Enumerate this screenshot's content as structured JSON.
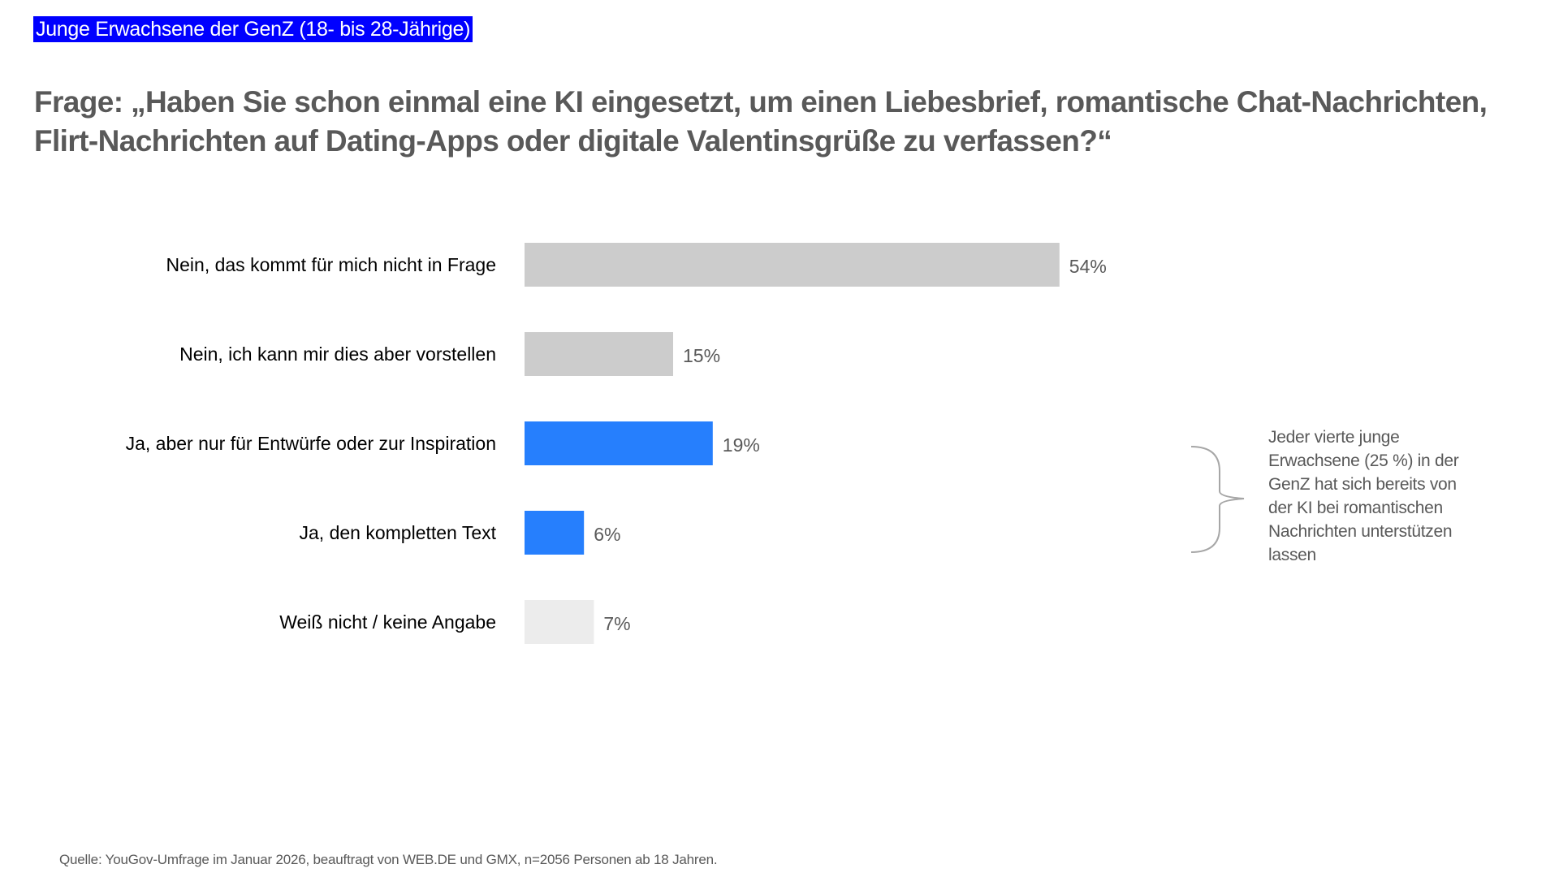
{
  "header": {
    "tag": "Junge Erwachsene der GenZ (18- bis 28-Jährige)",
    "question": "Frage: „Haben Sie schon einmal eine KI eingesetzt, um einen Liebesbrief, romantische Chat-Nachrichten, Flirt-Nachrichten auf Dating-Apps oder digitale Valentinsgrüße zu verfassen?“"
  },
  "chart_data": {
    "type": "bar",
    "orientation": "horizontal",
    "title": "",
    "xlabel": "",
    "ylabel": "",
    "xlim": [
      0,
      100
    ],
    "grid": false,
    "unit": "%",
    "categories": [
      "Nein, das kommt für mich nicht in Frage",
      "Nein, ich kann mir dies aber vorstellen",
      "Ja, aber nur für Entwürfe oder zur Inspiration",
      "Ja, den kompletten Text",
      "Weiß nicht / keine Angabe"
    ],
    "values": [
      54,
      15,
      19,
      6,
      7
    ],
    "value_labels": [
      "54%",
      "15%",
      "19%",
      "6%",
      "7%"
    ],
    "colors": [
      "#cccccc",
      "#cccccc",
      "#267ffd",
      "#267ffd",
      "#ececec"
    ]
  },
  "annotation": {
    "text": "Jeder vierte junge Erwachsene (25 %) in der GenZ hat sich bereits von der KI bei romantischen Nachrichten unterstützen lassen",
    "bracket_color": "#a6a6a6"
  },
  "footer": {
    "source": "Quelle: YouGov-Umfrage im Januar 2026, beauftragt von WEB.DE und GMX, n=2056 Personen ab 18 Jahren."
  }
}
